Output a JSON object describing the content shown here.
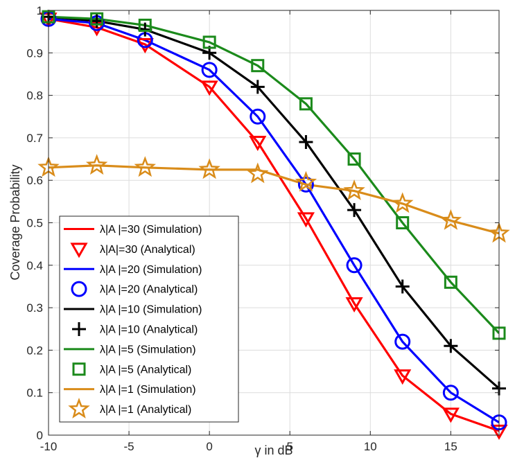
{
  "chart_data": {
    "type": "line",
    "xlabel": "γ in dB",
    "ylabel": "Coverage Probability",
    "xlim": [
      -10,
      18
    ],
    "ylim": [
      0,
      1
    ],
    "xticks": [
      -10,
      -5,
      0,
      5,
      10,
      15
    ],
    "xtick_labels": [
      "-10",
      "-5",
      "0",
      "5",
      "10",
      "15"
    ],
    "yticks": [
      0,
      0.1,
      0.2,
      0.3,
      0.4,
      0.5,
      0.6,
      0.7,
      0.8,
      0.9,
      1
    ],
    "ytick_labels": [
      "0",
      "0.1",
      "0.2",
      "0.3",
      "0.4",
      "0.5",
      "0.6",
      "0.7",
      "0.8",
      "0.9",
      "1"
    ],
    "grid": true,
    "legend_position": "bottom-left",
    "x": [
      -10,
      -7,
      -4,
      0,
      3,
      6,
      9,
      12,
      15,
      18
    ],
    "series": [
      {
        "name": "λ|A |=30 (Simulation)",
        "kind": "line",
        "color": "#ff0000",
        "values": [
          0.98,
          0.96,
          0.92,
          0.82,
          0.69,
          0.51,
          0.31,
          0.14,
          0.05,
          0.01
        ]
      },
      {
        "name": "λ|A|=30 (Analytical)",
        "kind": "marker",
        "marker": "triangle-down",
        "color": "#ff0000",
        "values": [
          0.98,
          0.96,
          0.92,
          0.82,
          0.69,
          0.51,
          0.31,
          0.14,
          0.05,
          0.01
        ]
      },
      {
        "name": "λ|A |=20 (Simulation)",
        "kind": "line",
        "color": "#0000ff",
        "values": [
          0.98,
          0.97,
          0.93,
          0.86,
          0.75,
          0.59,
          0.4,
          0.22,
          0.1,
          0.03
        ]
      },
      {
        "name": "λ|A |=20 (Analytical)",
        "kind": "marker",
        "marker": "circle",
        "color": "#0000ff",
        "values": [
          0.98,
          0.97,
          0.93,
          0.86,
          0.75,
          0.59,
          0.4,
          0.22,
          0.1,
          0.03
        ]
      },
      {
        "name": "λ|A |=10 (Simulation)",
        "kind": "line",
        "color": "#000000",
        "values": [
          0.985,
          0.975,
          0.955,
          0.9,
          0.82,
          0.69,
          0.53,
          0.35,
          0.21,
          0.11
        ]
      },
      {
        "name": "λ|A |=10 (Analytical)",
        "kind": "marker",
        "marker": "plus",
        "color": "#000000",
        "values": [
          0.985,
          0.975,
          0.955,
          0.9,
          0.82,
          0.69,
          0.53,
          0.35,
          0.21,
          0.11
        ]
      },
      {
        "name": "λ|A |=5 (Simulation)",
        "kind": "line",
        "color": "#1b8a1b",
        "values": [
          0.985,
          0.98,
          0.965,
          0.925,
          0.87,
          0.78,
          0.65,
          0.5,
          0.36,
          0.24
        ]
      },
      {
        "name": "λ|A |=5 (Analytical)",
        "kind": "marker",
        "marker": "square",
        "color": "#1b8a1b",
        "values": [
          0.985,
          0.98,
          0.965,
          0.925,
          0.87,
          0.78,
          0.65,
          0.5,
          0.36,
          0.24
        ]
      },
      {
        "name": "λ|A |=1 (Simulation)",
        "kind": "line",
        "color": "#d98c1a",
        "values": [
          0.63,
          0.635,
          0.63,
          0.625,
          0.625,
          0.59,
          0.575,
          0.545,
          0.505,
          0.475
        ]
      },
      {
        "name": "λ|A |=1 (Analytical)",
        "kind": "marker",
        "marker": "star",
        "color": "#d98c1a",
        "values": [
          0.63,
          0.635,
          0.63,
          0.625,
          0.615,
          0.595,
          0.575,
          0.545,
          0.505,
          0.475
        ]
      }
    ]
  }
}
